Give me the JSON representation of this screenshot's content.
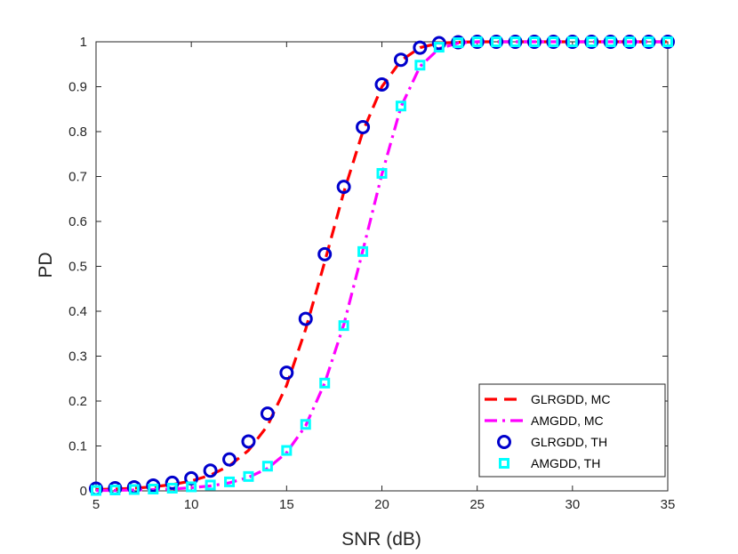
{
  "chart_data": {
    "type": "line",
    "xlabel": "SNR (dB)",
    "ylabel": "PD",
    "xlim": [
      5,
      35
    ],
    "ylim": [
      0,
      1
    ],
    "xticks": [
      5,
      10,
      15,
      20,
      25,
      30,
      35
    ],
    "yticks": [
      0,
      0.1,
      0.2,
      0.3,
      0.4,
      0.5,
      0.6,
      0.7,
      0.8,
      0.9,
      1
    ],
    "grid": false,
    "legend_position": "bottom-right",
    "series": [
      {
        "name": "GLRGDD, MC",
        "style": "dashed-line",
        "color": "#ff0000",
        "x": [
          5,
          6,
          7,
          8,
          9,
          10,
          11,
          12,
          13,
          14,
          15,
          16,
          17,
          18,
          19,
          20,
          21,
          22,
          23,
          24,
          25,
          26,
          27,
          28,
          29,
          30,
          31,
          32,
          33,
          34,
          35
        ],
        "y": [
          0.003,
          0.004,
          0.006,
          0.009,
          0.014,
          0.022,
          0.035,
          0.056,
          0.09,
          0.145,
          0.235,
          0.36,
          0.51,
          0.665,
          0.8,
          0.9,
          0.958,
          0.987,
          0.997,
          0.999,
          1,
          1,
          1,
          1,
          1,
          1,
          1,
          1,
          1,
          1,
          1
        ]
      },
      {
        "name": "AMGDD, MC",
        "style": "dash-dot-line",
        "color": "#ff00ff",
        "x": [
          5,
          6,
          7,
          8,
          9,
          10,
          11,
          12,
          13,
          14,
          15,
          16,
          17,
          18,
          19,
          20,
          21,
          22,
          23,
          24,
          25,
          26,
          27,
          28,
          29,
          30,
          31,
          32,
          33,
          34,
          35
        ],
        "y": [
          0.001,
          0.001,
          0.002,
          0.003,
          0.004,
          0.007,
          0.011,
          0.018,
          0.03,
          0.05,
          0.085,
          0.145,
          0.24,
          0.37,
          0.535,
          0.705,
          0.855,
          0.945,
          0.985,
          0.997,
          1,
          1,
          1,
          1,
          1,
          1,
          1,
          1,
          1,
          1,
          1
        ]
      },
      {
        "name": "GLRGDD, TH",
        "style": "circle-markers",
        "color": "#0000cc",
        "x": [
          5,
          6,
          7,
          8,
          9,
          10,
          11,
          12,
          13,
          14,
          15,
          16,
          17,
          18,
          19,
          20,
          21,
          22,
          23,
          24,
          25,
          26,
          27,
          28,
          29,
          30,
          31,
          32,
          33,
          34,
          35
        ],
        "y": [
          0.005,
          0.006,
          0.008,
          0.012,
          0.018,
          0.028,
          0.045,
          0.07,
          0.11,
          0.172,
          0.263,
          0.383,
          0.527,
          0.677,
          0.81,
          0.905,
          0.96,
          0.987,
          0.997,
          0.999,
          1,
          1,
          1,
          1,
          1,
          1,
          1,
          1,
          1,
          1,
          1
        ]
      },
      {
        "name": "AMGDD, TH",
        "style": "square-markers",
        "color": "#00ffff",
        "x": [
          5,
          6,
          7,
          8,
          9,
          10,
          11,
          12,
          13,
          14,
          15,
          16,
          17,
          18,
          19,
          20,
          21,
          22,
          23,
          24,
          25,
          26,
          27,
          28,
          29,
          30,
          31,
          32,
          33,
          34,
          35
        ],
        "y": [
          0.001,
          0.002,
          0.003,
          0.004,
          0.006,
          0.009,
          0.013,
          0.02,
          0.032,
          0.055,
          0.09,
          0.148,
          0.24,
          0.368,
          0.533,
          0.707,
          0.857,
          0.948,
          0.988,
          0.998,
          1,
          1,
          1,
          1,
          1,
          1,
          1,
          1,
          1,
          1,
          1
        ]
      }
    ]
  }
}
